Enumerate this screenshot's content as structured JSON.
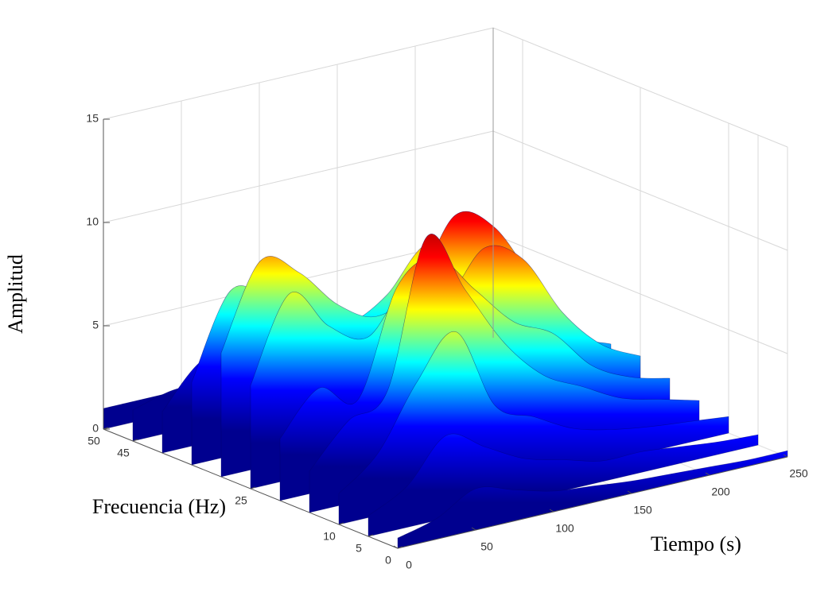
{
  "chart_data": {
    "type": "surface",
    "xlabel": "Tiempo (s)",
    "ylabel": "Frecuencia (Hz)",
    "zlabel": "Amplitud",
    "x": [
      0,
      25,
      50,
      75,
      100,
      125,
      150,
      175,
      200,
      225,
      250
    ],
    "y": [
      0,
      5,
      10,
      15,
      20,
      25,
      30,
      35,
      40,
      45,
      50
    ],
    "z": [
      [
        0.5,
        1,
        2,
        1.5,
        1,
        0.8,
        0.6,
        0.5,
        0.4,
        0.3,
        0.3
      ],
      [
        1,
        2,
        4,
        3,
        2,
        1.5,
        1,
        1,
        0.8,
        0.6,
        0.5
      ],
      [
        1.5,
        3,
        6,
        8,
        4,
        3,
        2,
        1.5,
        1.2,
        1,
        0.8
      ],
      [
        2,
        4,
        5,
        12,
        9,
        6,
        4,
        3,
        2,
        1.5,
        1
      ],
      [
        3,
        5,
        4,
        9,
        10,
        8,
        6,
        5,
        3,
        2,
        1.5
      ],
      [
        5,
        9,
        7,
        6,
        8,
        7,
        9,
        8,
        5,
        3,
        2
      ],
      [
        6,
        10,
        9,
        7,
        6,
        7,
        10,
        9,
        6,
        3,
        2
      ],
      [
        4,
        8,
        7,
        5,
        5,
        6,
        8,
        7,
        4,
        2,
        1.5
      ],
      [
        2,
        4,
        4,
        3,
        3,
        4,
        5,
        4,
        3,
        2,
        1
      ],
      [
        1.5,
        2,
        2,
        2,
        2,
        2,
        2,
        2,
        1.5,
        1,
        1
      ],
      [
        1,
        1,
        1,
        1,
        1,
        1,
        1,
        1,
        1,
        1,
        1
      ]
    ],
    "xlim": [
      0,
      250
    ],
    "ylim": [
      0,
      50
    ],
    "zlim": [
      0,
      15
    ],
    "xticks": [
      0,
      50,
      100,
      150,
      200,
      250
    ],
    "yticks": [
      0,
      5,
      10,
      25,
      45,
      50
    ],
    "zticks": [
      0,
      5,
      10,
      15
    ],
    "grid": true,
    "colormap": [
      "#00008f",
      "#0000ff",
      "#00ffff",
      "#ffff00",
      "#ff0000",
      "#800000"
    ]
  }
}
